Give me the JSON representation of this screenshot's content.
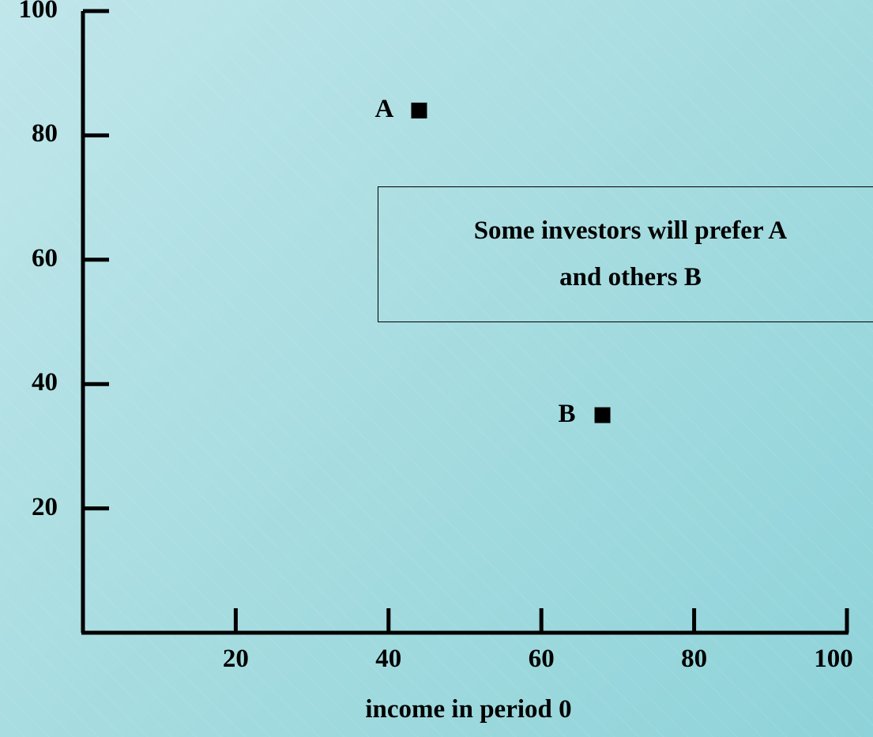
{
  "chart_data": {
    "type": "scatter",
    "title": "",
    "xlabel": "income in period 0",
    "ylabel": "",
    "xlim": [
      0,
      100
    ],
    "ylim": [
      0,
      100
    ],
    "x_ticks": [
      "20",
      "40",
      "60",
      "80",
      "100"
    ],
    "y_ticks": [
      "20",
      "40",
      "60",
      "80",
      "100"
    ],
    "grid": false,
    "points": [
      {
        "label": "A",
        "x": 44,
        "y": 84
      },
      {
        "label": "B",
        "x": 68,
        "y": 35
      }
    ],
    "annotation": {
      "line1": "Some investors will prefer A",
      "line2": "and others B"
    }
  },
  "colors": {
    "axis": "#000000",
    "marker": "#000000",
    "background_start": "#c0e6ea",
    "background_end": "#8ed3d9"
  }
}
